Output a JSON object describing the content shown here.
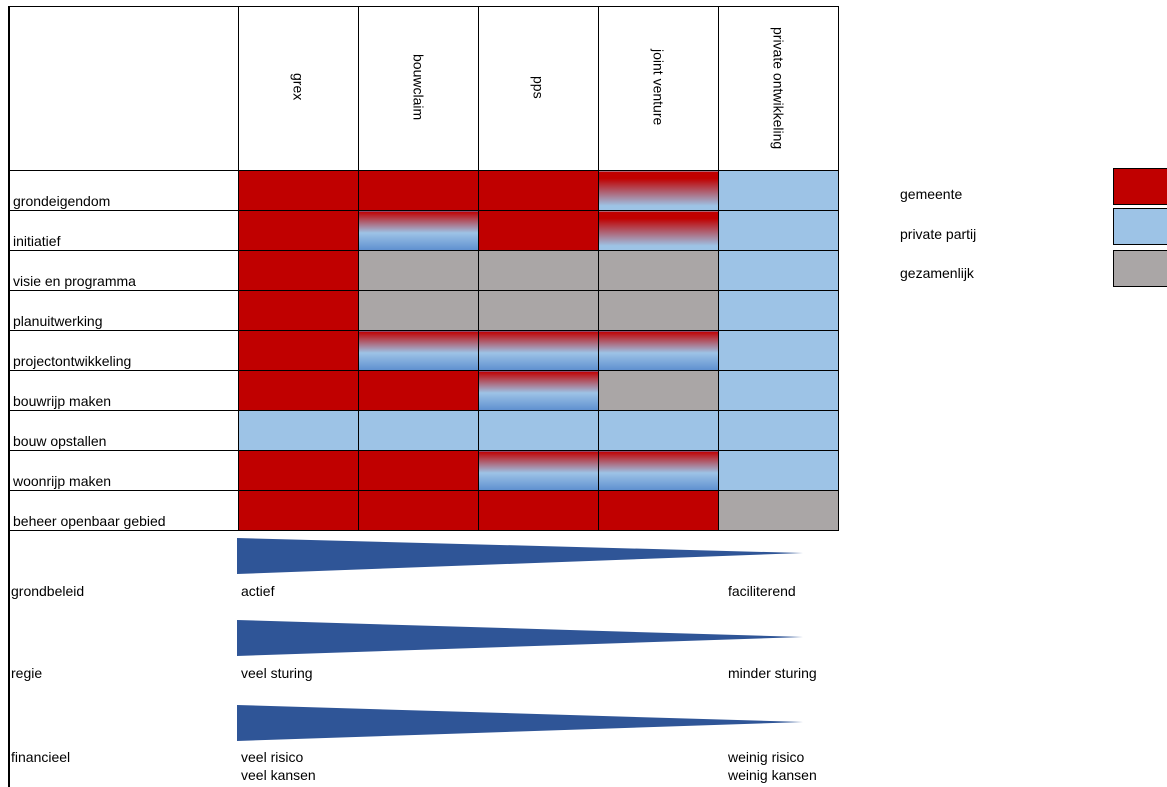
{
  "columns": [
    "grex",
    "bouwclaim",
    "pps",
    "joint venture",
    "private ontwikkeling"
  ],
  "rows": [
    {
      "label": "grondeigendom",
      "cells": [
        "g",
        "g",
        "g",
        "gp",
        "p"
      ]
    },
    {
      "label": "initiatief",
      "cells": [
        "g",
        "pg",
        "g",
        "gp",
        "p"
      ]
    },
    {
      "label": "visie en programma",
      "cells": [
        "g",
        "z",
        "z",
        "z",
        "p"
      ]
    },
    {
      "label": "planuitwerking",
      "cells": [
        "g",
        "z",
        "z",
        "z",
        "p"
      ]
    },
    {
      "label": "projectontwikkeling",
      "cells": [
        "g",
        "pg",
        "pg",
        "pg",
        "p"
      ]
    },
    {
      "label": "bouwrijp maken",
      "cells": [
        "g",
        "g",
        "pg",
        "z",
        "p"
      ]
    },
    {
      "label": "bouw opstallen",
      "cells": [
        "p",
        "p",
        "p",
        "p",
        "p"
      ]
    },
    {
      "label": "woonrijp maken",
      "cells": [
        "g",
        "g",
        "pg",
        "pg",
        "p"
      ]
    },
    {
      "label": "beheer openbaar gebied",
      "cells": [
        "g",
        "g",
        "g",
        "g",
        "z"
      ]
    }
  ],
  "scales": [
    {
      "label": "grondbeleid",
      "left": "actief",
      "right": "faciliterend"
    },
    {
      "label": "regie",
      "left": "veel sturing",
      "right": "minder sturing"
    },
    {
      "label": "financieel",
      "left": "veel risico",
      "left2": "veel kansen",
      "right": "weinig risico",
      "right2": "weinig kansen"
    }
  ],
  "legend": [
    {
      "label": "gemeente",
      "color": "#c00000"
    },
    {
      "label": "private partij",
      "color": "#9dc3e6"
    },
    {
      "label": "gezamenlijk",
      "color": "#aaa6a6"
    }
  ],
  "colors": {
    "gemeente": "#c00000",
    "private": "#9dc3e6",
    "gezamenlijk": "#aaa6a6",
    "wedge": "#2f5597"
  }
}
